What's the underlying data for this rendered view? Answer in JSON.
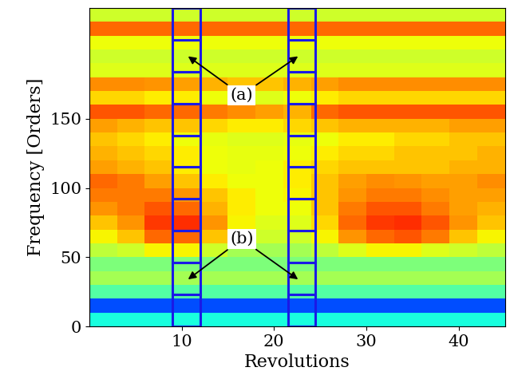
{
  "chart_data": {
    "type": "heatmap",
    "x_label": "Revolutions",
    "y_label": "Frequency [Orders]",
    "xlim": [
      0,
      45
    ],
    "ylim": [
      0,
      230
    ],
    "xticks": [
      10,
      20,
      30,
      40
    ],
    "yticks": [
      0,
      50,
      100,
      150
    ],
    "color": "jet",
    "clim": [
      0,
      1
    ],
    "x_edges": [
      0,
      3,
      6,
      9,
      12,
      15,
      18,
      21,
      24,
      27,
      30,
      33,
      36,
      39,
      42,
      45
    ],
    "y_edges": [
      0,
      10,
      20,
      30,
      40,
      50,
      60,
      70,
      80,
      90,
      100,
      110,
      120,
      130,
      140,
      150,
      160,
      170,
      180,
      190,
      200,
      210,
      220,
      230
    ],
    "cells": [
      [
        0.38,
        0.38,
        0.38,
        0.38,
        0.38,
        0.38,
        0.38,
        0.38,
        0.38,
        0.38,
        0.38,
        0.38,
        0.38,
        0.38,
        0.38
      ],
      [
        0.2,
        0.2,
        0.2,
        0.2,
        0.2,
        0.2,
        0.2,
        0.2,
        0.2,
        0.2,
        0.2,
        0.2,
        0.2,
        0.2,
        0.2
      ],
      [
        0.45,
        0.45,
        0.45,
        0.45,
        0.45,
        0.45,
        0.45,
        0.45,
        0.45,
        0.45,
        0.45,
        0.45,
        0.45,
        0.45,
        0.45
      ],
      [
        0.55,
        0.55,
        0.55,
        0.55,
        0.55,
        0.55,
        0.55,
        0.55,
        0.55,
        0.55,
        0.55,
        0.55,
        0.55,
        0.55,
        0.55
      ],
      [
        0.5,
        0.5,
        0.5,
        0.5,
        0.5,
        0.5,
        0.5,
        0.5,
        0.5,
        0.5,
        0.5,
        0.5,
        0.5,
        0.5,
        0.5
      ],
      [
        0.58,
        0.6,
        0.65,
        0.65,
        0.6,
        0.55,
        0.55,
        0.55,
        0.58,
        0.62,
        0.65,
        0.65,
        0.62,
        0.6,
        0.58
      ],
      [
        0.65,
        0.7,
        0.8,
        0.8,
        0.7,
        0.62,
        0.6,
        0.6,
        0.65,
        0.75,
        0.8,
        0.82,
        0.78,
        0.7,
        0.65
      ],
      [
        0.7,
        0.75,
        0.85,
        0.86,
        0.75,
        0.65,
        0.62,
        0.62,
        0.68,
        0.8,
        0.85,
        0.86,
        0.82,
        0.75,
        0.7
      ],
      [
        0.75,
        0.78,
        0.82,
        0.8,
        0.72,
        0.66,
        0.64,
        0.64,
        0.7,
        0.78,
        0.82,
        0.82,
        0.78,
        0.74,
        0.72
      ],
      [
        0.78,
        0.78,
        0.78,
        0.75,
        0.7,
        0.66,
        0.64,
        0.65,
        0.7,
        0.75,
        0.78,
        0.78,
        0.76,
        0.74,
        0.74
      ],
      [
        0.8,
        0.78,
        0.74,
        0.7,
        0.66,
        0.64,
        0.64,
        0.66,
        0.7,
        0.74,
        0.76,
        0.75,
        0.74,
        0.74,
        0.76
      ],
      [
        0.74,
        0.72,
        0.7,
        0.66,
        0.64,
        0.63,
        0.64,
        0.66,
        0.68,
        0.7,
        0.7,
        0.7,
        0.7,
        0.72,
        0.72
      ],
      [
        0.72,
        0.7,
        0.68,
        0.66,
        0.64,
        0.63,
        0.63,
        0.64,
        0.66,
        0.68,
        0.68,
        0.7,
        0.7,
        0.7,
        0.72
      ],
      [
        0.7,
        0.68,
        0.66,
        0.64,
        0.63,
        0.62,
        0.62,
        0.63,
        0.64,
        0.66,
        0.66,
        0.68,
        0.68,
        0.7,
        0.7
      ],
      [
        0.74,
        0.72,
        0.7,
        0.7,
        0.68,
        0.66,
        0.66,
        0.68,
        0.7,
        0.72,
        0.72,
        0.72,
        0.72,
        0.74,
        0.74
      ],
      [
        0.82,
        0.82,
        0.8,
        0.8,
        0.78,
        0.76,
        0.74,
        0.72,
        0.8,
        0.82,
        0.82,
        0.82,
        0.82,
        0.82,
        0.82
      ],
      [
        0.68,
        0.68,
        0.66,
        0.66,
        0.64,
        0.62,
        0.62,
        0.64,
        0.66,
        0.68,
        0.68,
        0.68,
        0.68,
        0.68,
        0.68
      ],
      [
        0.76,
        0.76,
        0.75,
        0.74,
        0.72,
        0.7,
        0.7,
        0.72,
        0.74,
        0.76,
        0.76,
        0.76,
        0.76,
        0.76,
        0.76
      ],
      [
        0.62,
        0.62,
        0.62,
        0.62,
        0.62,
        0.62,
        0.62,
        0.62,
        0.62,
        0.62,
        0.62,
        0.62,
        0.62,
        0.62,
        0.62
      ],
      [
        0.6,
        0.6,
        0.6,
        0.6,
        0.6,
        0.6,
        0.6,
        0.6,
        0.6,
        0.6,
        0.6,
        0.6,
        0.6,
        0.6,
        0.6
      ],
      [
        0.64,
        0.64,
        0.64,
        0.64,
        0.64,
        0.64,
        0.64,
        0.64,
        0.64,
        0.64,
        0.64,
        0.64,
        0.64,
        0.64,
        0.64
      ],
      [
        0.8,
        0.8,
        0.8,
        0.8,
        0.8,
        0.8,
        0.8,
        0.8,
        0.8,
        0.8,
        0.8,
        0.8,
        0.8,
        0.8,
        0.8
      ],
      [
        0.6,
        0.6,
        0.6,
        0.6,
        0.6,
        0.6,
        0.6,
        0.6,
        0.6,
        0.6,
        0.6,
        0.6,
        0.6,
        0.6,
        0.6
      ]
    ],
    "windows": [
      [
        9,
        12
      ],
      [
        21.5,
        24.5
      ]
    ],
    "window_bands": [
      0,
      23,
      46,
      69,
      92,
      115,
      138,
      161,
      184,
      207,
      230
    ],
    "window_color": "#1a1ae6",
    "annotations": [
      {
        "text": "(a)",
        "x": 16.5,
        "y": 167,
        "targets": [
          [
            10.7,
            195
          ],
          [
            22.6,
            195
          ]
        ]
      },
      {
        "text": "(b)",
        "x": 16.5,
        "y": 63,
        "targets": [
          [
            10.7,
            34
          ],
          [
            22.6,
            34
          ]
        ]
      }
    ]
  }
}
